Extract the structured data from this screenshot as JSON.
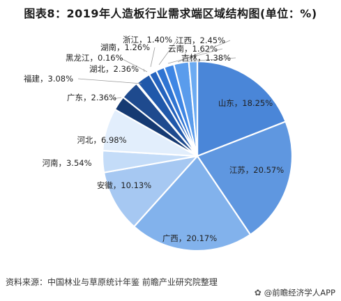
{
  "title": "图表8：2019年人造板行业需求端区域结构图(单位：%)",
  "source": "资料来源：中国林业与草原统计年鉴 前瞻产业研究院整理",
  "brand": {
    "icon": "wechat-icon",
    "text": "@前瞻经济学人APP"
  },
  "chart_data": {
    "type": "pie",
    "title": "图表8：2019年人造板行业需求端区域结构图(单位：%)",
    "unit": "%",
    "labels": [
      "山东",
      "江苏",
      "广西",
      "安徽",
      "河南",
      "河北",
      "广东",
      "福建",
      "黑龙江",
      "湖北",
      "湖南",
      "浙江",
      "云南",
      "江西",
      "吉林"
    ],
    "values": [
      18.25,
      20.57,
      20.17,
      10.13,
      3.54,
      6.98,
      2.36,
      3.08,
      0.16,
      2.36,
      1.26,
      1.4,
      1.62,
      2.45,
      1.38
    ],
    "colors": [
      "#4a86d8",
      "#5f97e0",
      "#82b2ec",
      "#a6c8f2",
      "#c4dcf8",
      "#e2eefc",
      "#163a72",
      "#1e4a8e",
      "#1e4a8e",
      "#2058aa",
      "#2563be",
      "#2f74d2",
      "#3e86e4",
      "#5a9cec",
      "#6cabf2"
    ],
    "label_texts": [
      "山东，18.25%",
      "江苏，20.57%",
      "广西，20.17%",
      "安徽，10.13%",
      "河南，3.54%",
      "河北，6.98%",
      "广东，2.36%",
      "福建，3.08%",
      "黑龙江，0.16%",
      "湖北，2.36%",
      "湖南，1.26%",
      "浙江，1.40%",
      "云南，1.62%",
      "江西，2.45%",
      "吉林，1.38%"
    ]
  }
}
